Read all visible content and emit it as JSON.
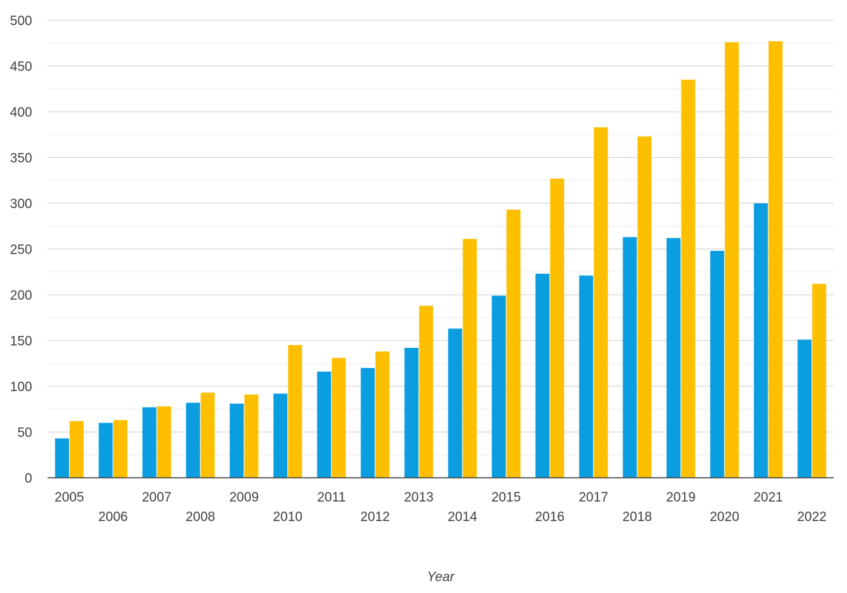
{
  "chart_data": {
    "type": "bar",
    "title": "",
    "xlabel": "Year",
    "ylabel": "",
    "ylim": [
      0,
      500
    ],
    "yticks": [
      0,
      50,
      100,
      150,
      200,
      250,
      300,
      350,
      400,
      450,
      500
    ],
    "grid": true,
    "legend": "none",
    "categories": [
      "2005",
      "2006",
      "2007",
      "2008",
      "2009",
      "2010",
      "2011",
      "2012",
      "2013",
      "2014",
      "2015",
      "2016",
      "2017",
      "2018",
      "2019",
      "2020",
      "2021",
      "2022"
    ],
    "series": [
      {
        "color": "#0a9de0",
        "values": [
          43,
          60,
          77,
          82,
          81,
          92,
          116,
          120,
          142,
          163,
          199,
          223,
          221,
          263,
          262,
          248,
          300,
          151
        ]
      },
      {
        "color": "#fdbf00",
        "values": [
          62,
          63,
          78,
          93,
          91,
          145,
          131,
          138,
          188,
          261,
          293,
          327,
          383,
          373,
          435,
          476,
          477,
          212
        ]
      }
    ]
  }
}
